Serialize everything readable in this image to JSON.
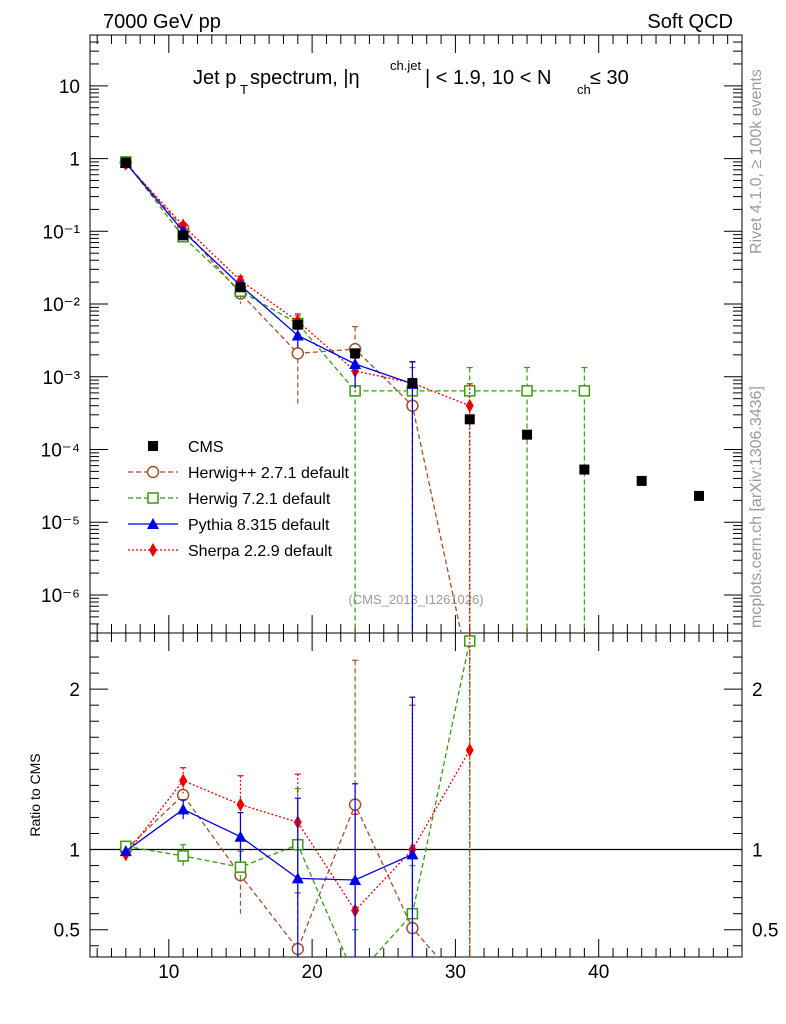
{
  "header": {
    "left_label": "7000 GeV pp",
    "right_label": "Soft QCD"
  },
  "title": {
    "prefix": "Jet p",
    "pt_sub": "T",
    "mid1": " spectrum, |η",
    "eta_sup": "ch.jet",
    "mid2": "| < 1.9, 10 < N",
    "nch_sub": "ch",
    "suffix": " ≤ 30"
  },
  "side": {
    "rivet": "Rivet 4.1.0, ≥ 100k events",
    "mcplots": "mcplots.cern.ch [arXiv:1306.3436]"
  },
  "watermark": "(CMS_2013_I1261026)",
  "colors": {
    "cms": "#000000",
    "herwigpp": "#a0522d",
    "herwig7": "#3a9a10",
    "pythia": "#0000e6",
    "sherpa": "#ee0000"
  },
  "chart_data": [
    {
      "type": "scatter",
      "panel": "main",
      "yscale": "log",
      "ylim": [
        3e-07,
        50
      ],
      "xlim": [
        4.5,
        50
      ],
      "xlabel": "",
      "ylabel": "",
      "y_tick_labels": [
        "10",
        "1",
        "10⁻¹",
        "10⁻²",
        "10⁻³",
        "10⁻⁴",
        "10⁻⁵",
        "10⁻⁶"
      ],
      "y_tick_values": [
        10,
        1,
        0.1,
        0.01,
        0.001,
        0.0001,
        1e-05,
        1e-06
      ],
      "legend_position": "middle-left",
      "series": [
        {
          "name": "CMS",
          "key": "cms",
          "style": "points",
          "x": [
            7,
            11,
            15,
            19,
            23,
            27,
            31,
            35,
            39,
            43,
            47
          ],
          "y": [
            0.88,
            0.088,
            0.017,
            0.0052,
            0.0021,
            0.00082,
            0.00026,
            0.00016,
            5.3e-05,
            3.7e-05,
            2.3e-05
          ]
        },
        {
          "name": "Herwig++ 2.7.1 default",
          "key": "herwigpp",
          "style": "dashed",
          "x": [
            7,
            11,
            15,
            19,
            23,
            27,
            31
          ],
          "y": [
            0.88,
            0.11,
            0.014,
            0.0021,
            0.0024,
            0.0004,
            0.0
          ],
          "yerr_low": [
            0.0,
            0.01,
            0.004,
            0.0017,
            0.0015,
            0.0004,
            0.0
          ],
          "yerr_high": [
            0.0,
            0.01,
            0.004,
            0.0017,
            0.0025,
            0.0004,
            0.0
          ]
        },
        {
          "name": "Herwig 7.2.1 default",
          "key": "herwig7",
          "style": "dashed",
          "x": [
            7,
            11,
            15,
            19,
            23,
            27,
            31,
            35,
            39
          ],
          "y": [
            0.9,
            0.084,
            0.015,
            0.0054,
            0.00064,
            0.00064,
            0.00064,
            0.00064,
            0.00064
          ],
          "yerr_low": [
            0.0,
            0.008,
            0.003,
            0.0015,
            0.00064,
            0.00064,
            0.00064,
            0.00064,
            0.00064
          ],
          "yerr_high": [
            0.0,
            0.008,
            0.003,
            0.0015,
            0.0007,
            0.0007,
            0.0007,
            0.0007,
            0.0007
          ]
        },
        {
          "name": "Pythia 8.315 default",
          "key": "pythia",
          "style": "solid",
          "x": [
            7,
            11,
            15,
            19,
            23,
            27
          ],
          "y": [
            0.87,
            0.1,
            0.018,
            0.0037,
            0.0015,
            0.0008
          ],
          "yerr_low": [
            0.0,
            0.008,
            0.002,
            0.0012,
            0.0008,
            0.0008
          ],
          "yerr_high": [
            0.0,
            0.008,
            0.002,
            0.0012,
            0.0008,
            0.0008
          ]
        },
        {
          "name": "Sherpa 2.2.9 default",
          "key": "sherpa",
          "style": "dotted",
          "x": [
            7,
            11,
            15,
            19,
            23,
            27,
            31
          ],
          "y": [
            0.85,
            0.12,
            0.021,
            0.0058,
            0.0012,
            0.00082,
            0.0004
          ],
          "yerr_low": [
            0.0,
            0.01,
            0.003,
            0.0015,
            0.0006,
            0.0008,
            0.0004
          ],
          "yerr_high": [
            0.0,
            0.01,
            0.003,
            0.0015,
            0.0006,
            0.0008,
            0.0004
          ]
        }
      ]
    },
    {
      "type": "line",
      "panel": "ratio",
      "ylabel": "Ratio to CMS",
      "xlabel": "",
      "ylim": [
        0.33,
        2.35
      ],
      "xlim": [
        4.5,
        50
      ],
      "x_tick_labels": [
        "10",
        "20",
        "30",
        "40"
      ],
      "x_tick_values": [
        10,
        20,
        30,
        40
      ],
      "y_tick_labels": [
        "2",
        "1",
        "0.5"
      ],
      "y_tick_values": [
        2,
        1,
        0.5
      ],
      "reference_line": 1,
      "series": [
        {
          "name": "Herwig++ 2.7.1 default",
          "key": "herwigpp",
          "x": [
            7,
            11,
            15,
            19,
            23,
            27,
            31
          ],
          "y": [
            1.0,
            1.34,
            0.84,
            0.38,
            1.28,
            0.51,
            0.1
          ],
          "yerr_low": [
            0.0,
            0.08,
            0.24,
            0.35,
            0.9,
            0.5,
            0.1
          ],
          "yerr_high": [
            0.0,
            0.08,
            0.24,
            0.35,
            0.9,
            0.5,
            0.1
          ]
        },
        {
          "name": "Herwig 7.2.1 default",
          "key": "herwig7",
          "x": [
            7,
            11,
            15,
            19,
            23,
            27,
            31
          ],
          "y": [
            1.02,
            0.96,
            0.89,
            1.03,
            0.2,
            0.6,
            2.3
          ],
          "yerr_low": [
            0.0,
            0.07,
            0.1,
            0.35,
            0.2,
            0.6,
            2.3
          ],
          "yerr_high": [
            0.0,
            0.07,
            0.1,
            0.35,
            0.3,
            0.3,
            0.3
          ]
        },
        {
          "name": "Pythia 8.315 default",
          "key": "pythia",
          "x": [
            7,
            11,
            15,
            19,
            23,
            27
          ],
          "y": [
            0.99,
            1.25,
            1.08,
            0.82,
            0.81,
            0.97
          ],
          "yerr_low": [
            0.0,
            0.06,
            0.15,
            0.5,
            0.5,
            0.97
          ],
          "yerr_high": [
            0.0,
            0.06,
            0.15,
            0.5,
            0.6,
            0.98
          ]
        },
        {
          "name": "Sherpa 2.2.9 default",
          "key": "sherpa",
          "x": [
            7,
            11,
            15,
            19,
            23,
            27,
            31
          ],
          "y": [
            0.97,
            1.43,
            1.28,
            1.17,
            0.62,
            1.0,
            1.62
          ],
          "yerr_low": [
            0.0,
            0.08,
            0.18,
            0.3,
            0.6,
            1.0,
            1.62
          ],
          "yerr_high": [
            0.0,
            0.08,
            0.18,
            0.3,
            0.6,
            0.9,
            0.8
          ]
        }
      ]
    }
  ]
}
